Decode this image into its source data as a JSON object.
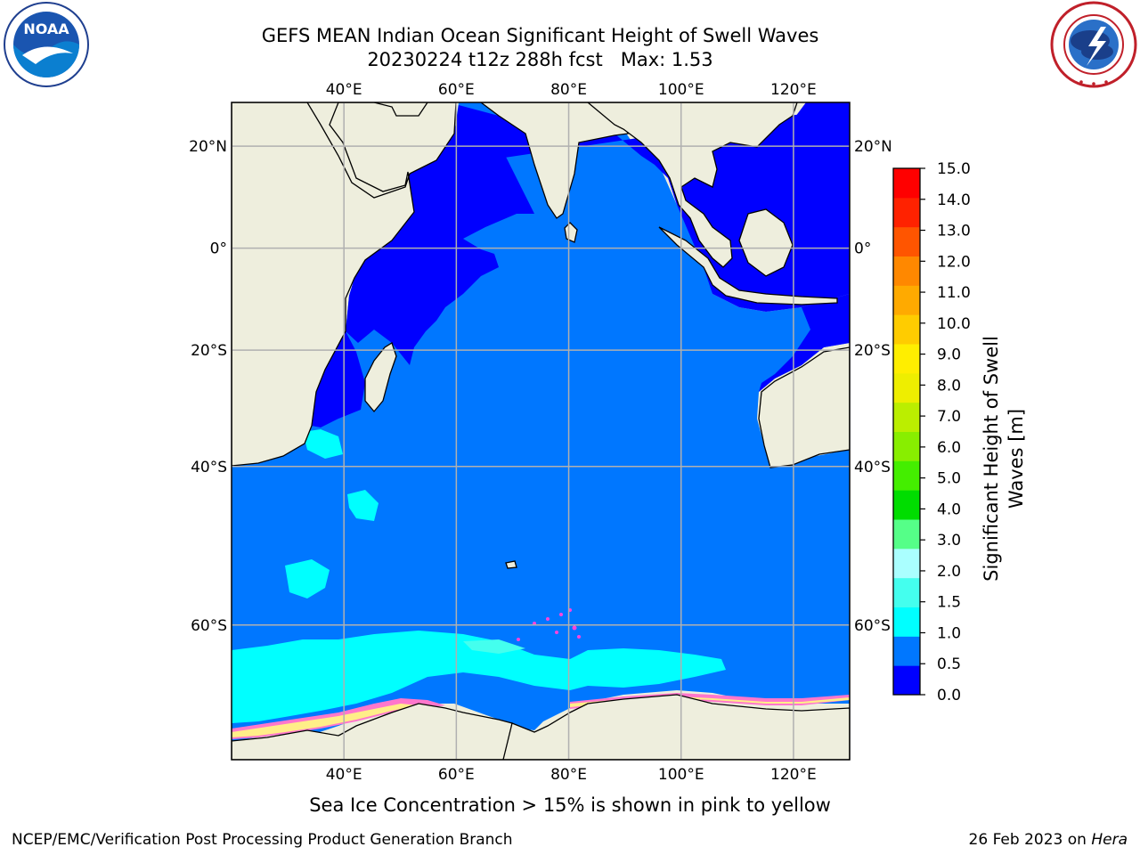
{
  "header": {
    "title_line1": "GEFS MEAN Indian Ocean Significant Height of Swell Waves",
    "title_line2": "20230224 t12z 288h fcst   Max: 1.53"
  },
  "logos": {
    "left": {
      "text": "NOAA",
      "ring_text": "NATIONAL OCEANIC AND ATMOSPHERIC ADMINISTRATION · U.S. DEPARTMENT OF COMMERCE"
    },
    "right": {
      "ring_text": "NATIONAL WEATHER SERVICE"
    }
  },
  "map": {
    "lon_ticks": [
      {
        "value": 40,
        "label": "40°E"
      },
      {
        "value": 60,
        "label": "60°E"
      },
      {
        "value": 80,
        "label": "80°E"
      },
      {
        "value": 100,
        "label": "100°E"
      },
      {
        "value": 120,
        "label": "120°E"
      }
    ],
    "lat_ticks": [
      {
        "value": 20,
        "label": "20°N"
      },
      {
        "value": 0,
        "label": "0°"
      },
      {
        "value": -20,
        "label": "20°S"
      },
      {
        "value": -40,
        "label": "40°S"
      },
      {
        "value": -60,
        "label": "60°S"
      }
    ],
    "extent": {
      "lon_min": 20,
      "lon_max": 130,
      "lat_min": -71,
      "lat_max": 28
    },
    "colors": {
      "land": "#eeeedd",
      "coast": "#000000",
      "grid": "#b0b0b0"
    }
  },
  "colorbar": {
    "label": "Significant Height of Swell Waves [m]",
    "ticks": [
      "0.0",
      "0.5",
      "1.0",
      "1.5",
      "2.0",
      "3.0",
      "4.0",
      "5.0",
      "6.0",
      "7.0",
      "8.0",
      "9.0",
      "10.0",
      "11.0",
      "12.0",
      "13.0",
      "14.0",
      "15.0"
    ],
    "colors": [
      "#0000ff",
      "#0077ff",
      "#00ffff",
      "#44ffee",
      "#aaffff",
      "#55ff88",
      "#00dd00",
      "#44ee00",
      "#88ee00",
      "#bbee00",
      "#eeee00",
      "#ffee00",
      "#ffcc00",
      "#ffaa00",
      "#ff8800",
      "#ff5500",
      "#ff2200",
      "#ff0000"
    ]
  },
  "caption": "Sea Ice Concentration > 15% is shown in pink to yellow",
  "footer": {
    "left": "NCEP/EMC/Verification Post Processing Product Generation Branch",
    "right_date": "26 Feb 2023 on ",
    "right_host": "Hera"
  }
}
